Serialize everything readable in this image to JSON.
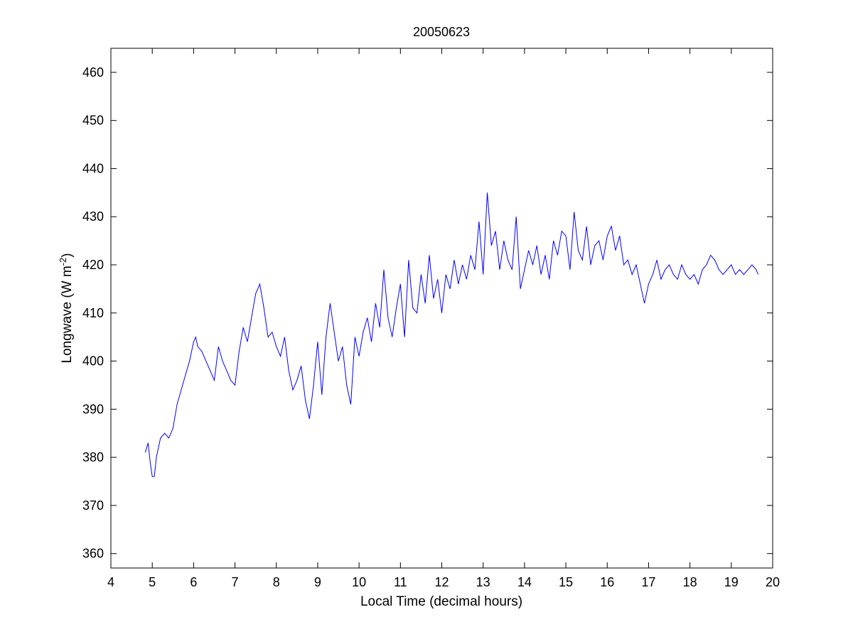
{
  "chart_data": {
    "type": "line",
    "title": "20050623",
    "xlabel": "Local Time (decimal hours)",
    "ylabel_main": "Longwave (W m",
    "ylabel_sup": "-2",
    "ylabel_close": ")",
    "xlim": [
      4,
      20
    ],
    "ylim": [
      357,
      465
    ],
    "xticks": [
      4,
      5,
      6,
      7,
      8,
      9,
      10,
      11,
      12,
      13,
      14,
      15,
      16,
      17,
      18,
      19,
      20
    ],
    "yticks": [
      360,
      370,
      380,
      390,
      400,
      410,
      420,
      430,
      440,
      450,
      460
    ],
    "grid": false,
    "line_color": "#0000ff",
    "series": [
      {
        "x": [
          4.83,
          4.9,
          4.95,
          5.0,
          5.05,
          5.1,
          5.2,
          5.3,
          5.4,
          5.5,
          5.6,
          5.7,
          5.8,
          5.9,
          6.0,
          6.05,
          6.1,
          6.2,
          6.3,
          6.4,
          6.5,
          6.6,
          6.7,
          6.8,
          6.9,
          7.0,
          7.1,
          7.2,
          7.3,
          7.4,
          7.5,
          7.6,
          7.7,
          7.8,
          7.9,
          8.0,
          8.1,
          8.2,
          8.3,
          8.4,
          8.5,
          8.6,
          8.7,
          8.8,
          8.9,
          9.0,
          9.1,
          9.2,
          9.3,
          9.4,
          9.5,
          9.6,
          9.7,
          9.8,
          9.9,
          10.0,
          10.1,
          10.2,
          10.3,
          10.4,
          10.5,
          10.6,
          10.7,
          10.8,
          10.9,
          11.0,
          11.1,
          11.2,
          11.3,
          11.4,
          11.5,
          11.6,
          11.7,
          11.8,
          11.9,
          12.0,
          12.1,
          12.2,
          12.3,
          12.4,
          12.5,
          12.6,
          12.7,
          12.8,
          12.9,
          13.0,
          13.1,
          13.2,
          13.3,
          13.4,
          13.5,
          13.6,
          13.7,
          13.8,
          13.9,
          14.0,
          14.1,
          14.2,
          14.3,
          14.4,
          14.5,
          14.6,
          14.7,
          14.8,
          14.9,
          15.0,
          15.1,
          15.2,
          15.3,
          15.4,
          15.5,
          15.6,
          15.7,
          15.8,
          15.9,
          16.0,
          16.1,
          16.2,
          16.3,
          16.4,
          16.5,
          16.6,
          16.7,
          16.8,
          16.9,
          17.0,
          17.1,
          17.2,
          17.3,
          17.4,
          17.5,
          17.6,
          17.7,
          17.8,
          17.9,
          18.0,
          18.1,
          18.2,
          18.3,
          18.4,
          18.5,
          18.6,
          18.7,
          18.8,
          18.9,
          19.0,
          19.1,
          19.2,
          19.3,
          19.4,
          19.5,
          19.6,
          19.65
        ],
        "y": [
          381,
          383,
          379,
          376,
          376,
          380,
          384,
          385,
          384,
          386,
          391,
          394,
          397,
          400,
          404,
          405,
          403,
          402,
          400,
          398,
          396,
          403,
          400,
          398,
          396,
          395,
          402,
          407,
          404,
          409,
          414,
          416,
          411,
          405,
          406,
          403,
          401,
          405,
          398,
          394,
          396,
          399,
          392,
          388,
          395,
          404,
          393,
          405,
          412,
          406,
          400,
          403,
          395,
          391,
          405,
          401,
          406,
          409,
          404,
          412,
          407,
          419,
          409,
          405,
          411,
          416,
          405,
          421,
          411,
          410,
          418,
          412,
          422,
          413,
          417,
          410,
          418,
          415,
          421,
          416,
          420,
          417,
          422,
          419,
          429,
          418,
          435,
          424,
          427,
          419,
          425,
          421,
          419,
          430,
          415,
          419,
          423,
          420,
          424,
          418,
          422,
          417,
          425,
          422,
          427,
          426,
          419,
          431,
          423,
          421,
          428,
          420,
          424,
          425,
          421,
          426,
          428,
          423,
          426,
          420,
          421,
          418,
          420,
          416,
          412,
          416,
          418,
          421,
          417,
          419,
          420,
          418,
          417,
          420,
          418,
          417,
          418,
          416,
          419,
          420,
          422,
          421,
          419,
          418,
          419,
          420,
          418,
          419,
          418,
          419,
          420,
          419,
          418
        ]
      }
    ]
  }
}
